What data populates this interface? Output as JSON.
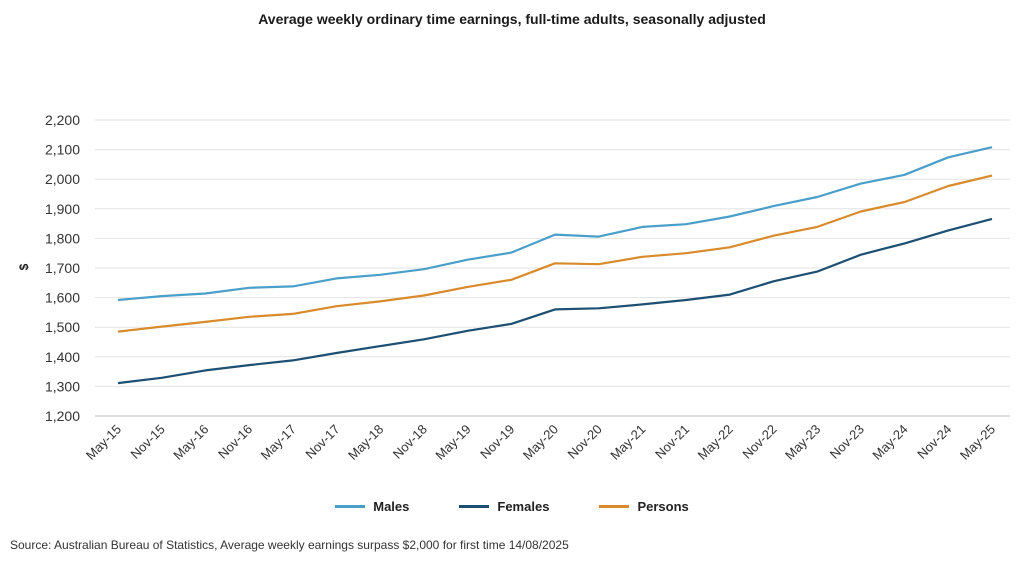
{
  "chart_data": {
    "type": "line",
    "title": "Average weekly ordinary time earnings, full-time adults, seasonally adjusted",
    "ylabel": "$",
    "xlabel": "",
    "ylim": [
      1200,
      2200
    ],
    "yticks": [
      1200,
      1300,
      1400,
      1500,
      1600,
      1700,
      1800,
      1900,
      2000,
      2100,
      2200
    ],
    "ytick_labels": [
      "1,200",
      "1,300",
      "1,400",
      "1,500",
      "1,600",
      "1,700",
      "1,800",
      "1,900",
      "2,000",
      "2,100",
      "2,200"
    ],
    "grid": true,
    "legend_position": "bottom",
    "categories": [
      "May-15",
      "Nov-15",
      "May-16",
      "Nov-16",
      "May-17",
      "Nov-17",
      "May-18",
      "Nov-18",
      "May-19",
      "Nov-19",
      "May-20",
      "Nov-20",
      "May-21",
      "Nov-21",
      "May-22",
      "Nov-22",
      "May-23",
      "Nov-23",
      "May-24",
      "Nov-24",
      "May-25"
    ],
    "series": [
      {
        "name": "Males",
        "color": "#4a9fca",
        "values": [
          1592,
          1605,
          1614,
          1633,
          1638,
          1665,
          1677,
          1696,
          1728,
          1752,
          1813,
          1806,
          1839,
          1848,
          1874,
          1909,
          1940,
          1985,
          2015,
          2074,
          2108
        ]
      },
      {
        "name": "Females",
        "color": "#1d4f73",
        "values": [
          1311,
          1329,
          1354,
          1372,
          1388,
          1413,
          1436,
          1459,
          1488,
          1511,
          1560,
          1564,
          1577,
          1592,
          1610,
          1655,
          1688,
          1745,
          1783,
          1827,
          1866
        ]
      },
      {
        "name": "Persons",
        "color": "#d98a2b",
        "values": [
          1485,
          1502,
          1518,
          1535,
          1545,
          1571,
          1587,
          1607,
          1636,
          1660,
          1716,
          1713,
          1738,
          1750,
          1770,
          1809,
          1839,
          1891,
          1923,
          1977,
          2012
        ]
      }
    ]
  },
  "source": "Source: Australian Bureau of Statistics, Average weekly earnings surpass $2,000 for first time  14/08/2025"
}
